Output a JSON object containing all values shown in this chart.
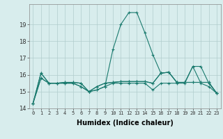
{
  "title": "",
  "xlabel": "Humidex (Indice chaleur)",
  "background_color": "#d8eded",
  "line_color": "#1a7a6e",
  "grid_color": "#b0cccc",
  "x": [
    0,
    1,
    2,
    3,
    4,
    5,
    6,
    7,
    8,
    9,
    10,
    11,
    12,
    13,
    14,
    15,
    16,
    17,
    18,
    19,
    20,
    21,
    22,
    23
  ],
  "series": [
    [
      14.3,
      16.1,
      15.5,
      15.5,
      15.55,
      15.55,
      15.5,
      15.0,
      15.3,
      15.5,
      15.55,
      15.6,
      15.6,
      15.6,
      15.6,
      15.5,
      16.1,
      16.15,
      15.55,
      15.55,
      15.55,
      15.55,
      15.55,
      14.9
    ],
    [
      14.3,
      15.8,
      15.5,
      15.5,
      15.5,
      15.5,
      15.3,
      15.0,
      15.1,
      15.3,
      17.5,
      19.0,
      19.7,
      19.7,
      18.5,
      17.2,
      16.1,
      16.15,
      15.55,
      15.55,
      16.5,
      15.5,
      15.3,
      14.9
    ],
    [
      14.3,
      15.8,
      15.5,
      15.5,
      15.5,
      15.5,
      15.3,
      15.0,
      15.1,
      15.3,
      15.5,
      15.5,
      15.5,
      15.5,
      15.5,
      15.1,
      15.5,
      15.5,
      15.5,
      15.5,
      16.5,
      16.5,
      15.5,
      14.9
    ],
    [
      14.3,
      16.1,
      15.5,
      15.5,
      15.55,
      15.55,
      15.5,
      15.0,
      15.3,
      15.5,
      15.55,
      15.6,
      15.6,
      15.6,
      15.6,
      15.5,
      16.1,
      16.15,
      15.55,
      15.55,
      15.55,
      15.55,
      15.55,
      14.9
    ]
  ],
  "ylim": [
    14.0,
    20.2
  ],
  "yticks": [
    14,
    15,
    16,
    17,
    18,
    19
  ],
  "xlim": [
    -0.5,
    23.5
  ],
  "xticks": [
    0,
    1,
    2,
    3,
    4,
    5,
    6,
    7,
    8,
    9,
    10,
    11,
    12,
    13,
    14,
    15,
    16,
    17,
    18,
    19,
    20,
    21,
    22,
    23
  ]
}
